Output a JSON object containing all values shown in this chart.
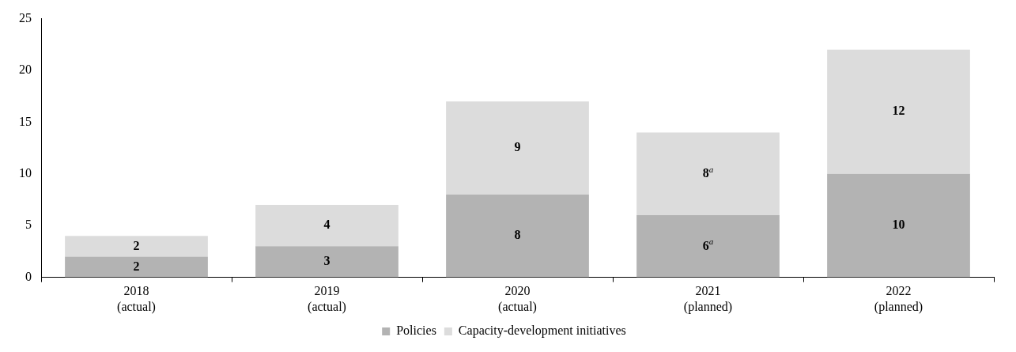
{
  "chart_data": {
    "type": "bar",
    "stacked": true,
    "categories": [
      "2018\n(actual)",
      "2019\n(actual)",
      "2020\n(actual)",
      "2021\n(planned)",
      "2022\n(planned)"
    ],
    "series": [
      {
        "name": "Policies",
        "color": "#b3b3b3",
        "values": [
          2,
          3,
          8,
          6,
          10
        ],
        "value_labels": [
          "2",
          "3",
          "8",
          "6$^{a}$",
          "10"
        ]
      },
      {
        "name": "Capacity-development initiatives",
        "color": "#dcdcdc",
        "values": [
          2,
          4,
          9,
          8,
          12
        ],
        "value_labels": [
          "2",
          "4",
          "9",
          "8$^{a}$",
          "12"
        ]
      }
    ],
    "ylim": [
      0,
      25
    ],
    "yticks": [
      0,
      5,
      10,
      15,
      20,
      25
    ],
    "grid": false,
    "legend": "bottom"
  }
}
